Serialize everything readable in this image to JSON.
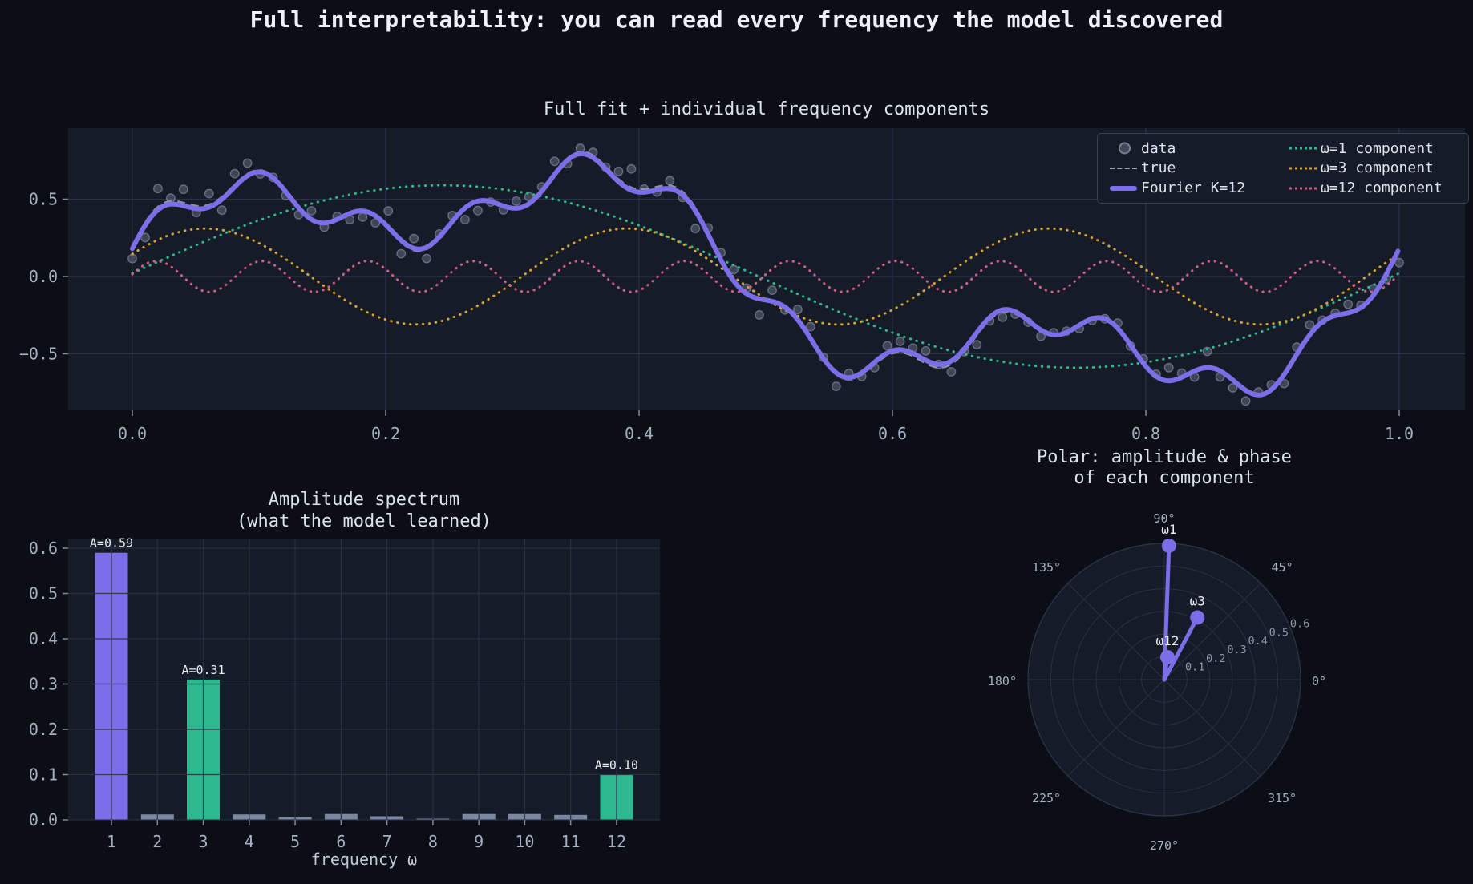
{
  "figure_title": "Full interpretability: you can read every frequency the model discovered",
  "colors": {
    "background": "#0b0e14",
    "panel": "#151b27",
    "grid": "#2a3149",
    "figure_text": "#eef1f7",
    "axes_text": "#dde2ec",
    "tick_text": "#a6b0c3",
    "faint_text": "#8d97ad",
    "annotation_text": "#e9edf4",
    "purple": "#7b6ee8",
    "teal": "#2eb88f",
    "orange": "#d9a032",
    "pink": "#d15c85",
    "scatter": "#9fa9bc",
    "scatter_edge": "#6f798f",
    "true_line": "#98a1b3",
    "gray_bar": "#7b87a0"
  },
  "chart_data": [
    {
      "id": "fit-plot",
      "type": "line",
      "title": "Full fit + individual frequency components",
      "xlim": [
        -0.05,
        1.05
      ],
      "ylim": [
        -0.87,
        0.96
      ],
      "xtick_labels": [
        "0.0",
        "0.2",
        "0.4",
        "0.6",
        "0.8",
        "1.0"
      ],
      "xtick_values": [
        0,
        0.2,
        0.4,
        0.6,
        0.8,
        1.0
      ],
      "ytick_labels": [
        "−0.5",
        "0.0",
        "0.5"
      ],
      "ytick_values": [
        -0.5,
        0,
        0.5
      ],
      "grid": true,
      "legend_position": "upper right",
      "fit_label": "Fourier K=12",
      "n_data_points": 100,
      "noise_sigma": 0.055,
      "components": [
        {
          "label": "ω1",
          "legend": "ω=1 component",
          "freq": 1,
          "amplitude": 0.59,
          "phase_deg": 88,
          "color_key": "teal"
        },
        {
          "label": "ω3",
          "legend": "ω=3 component",
          "freq": 3,
          "amplitude": 0.31,
          "phase_deg": 62,
          "color_key": "orange"
        },
        {
          "label": "ω12",
          "legend": "ω=12 component",
          "freq": 12,
          "amplitude": 0.1,
          "phase_deg": 82,
          "color_key": "pink"
        }
      ],
      "legend": [
        {
          "label": "data",
          "kind": "marker",
          "color_key": "scatter"
        },
        {
          "label": "true",
          "kind": "dashed",
          "color_key": "true_line"
        },
        {
          "label": "Fourier K=12",
          "kind": "line",
          "color_key": "purple"
        },
        {
          "label": "ω=1 component",
          "kind": "dotted",
          "color_key": "teal"
        },
        {
          "label": "ω=3 component",
          "kind": "dotted",
          "color_key": "orange"
        },
        {
          "label": "ω=12 component",
          "kind": "dotted",
          "color_key": "pink"
        }
      ]
    },
    {
      "id": "amplitude-spectrum",
      "type": "bar",
      "title_line1": "Amplitude spectrum",
      "title_line2": "(what the model learned)",
      "xlabel": "frequency ω",
      "categories": [
        "1",
        "2",
        "3",
        "4",
        "5",
        "6",
        "7",
        "8",
        "9",
        "10",
        "11",
        "12"
      ],
      "values": [
        0.59,
        0.012,
        0.31,
        0.012,
        0.006,
        0.013,
        0.008,
        0.002,
        0.013,
        0.013,
        0.011,
        0.1
      ],
      "bar_color_keys": [
        "purple",
        "gray_bar",
        "teal",
        "gray_bar",
        "gray_bar",
        "gray_bar",
        "gray_bar",
        "gray_bar",
        "gray_bar",
        "gray_bar",
        "gray_bar",
        "teal"
      ],
      "annotations": [
        {
          "category": "1",
          "text": "A=0.59"
        },
        {
          "category": "3",
          "text": "A=0.31"
        },
        {
          "category": "12",
          "text": "A=0.10"
        }
      ],
      "ytick_labels": [
        "0.0",
        "0.1",
        "0.2",
        "0.3",
        "0.4",
        "0.5",
        "0.6"
      ],
      "ytick_values": [
        0,
        0.1,
        0.2,
        0.3,
        0.4,
        0.5,
        0.6
      ],
      "ylim": [
        0,
        0.62
      ],
      "grid": true
    },
    {
      "id": "polar-phase",
      "type": "polar",
      "title_line1": "Polar: amplitude & phase",
      "title_line2": "of each component",
      "angle_tick_labels": [
        "0°",
        "45°",
        "90°",
        "135°",
        "180°",
        "225°",
        "270°",
        "315°"
      ],
      "radial_tick_labels": [
        "0.1",
        "0.2",
        "0.3",
        "0.4",
        "0.5",
        "0.6"
      ],
      "radial_tick_values": [
        0.1,
        0.2,
        0.3,
        0.4,
        0.5,
        0.6
      ],
      "rmax": 0.6,
      "points": [
        {
          "label": "ω1",
          "r": 0.59,
          "theta_deg": 88
        },
        {
          "label": "ω3",
          "r": 0.31,
          "theta_deg": 62
        },
        {
          "label": "ω12",
          "r": 0.1,
          "theta_deg": 82
        }
      ]
    }
  ]
}
